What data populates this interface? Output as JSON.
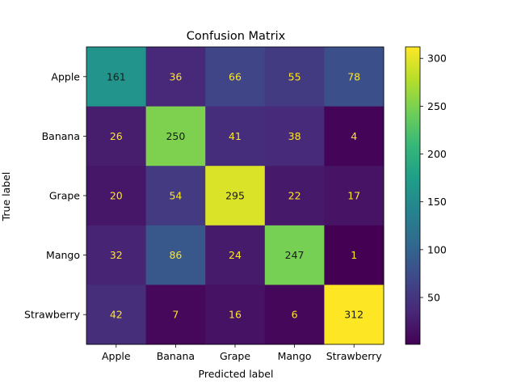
{
  "chart_data": {
    "type": "heatmap",
    "title": "Confusion Matrix",
    "xlabel": "Predicted label",
    "ylabel": "True label",
    "x_categories": [
      "Apple",
      "Banana",
      "Grape",
      "Mango",
      "Strawberry"
    ],
    "y_categories": [
      "Apple",
      "Banana",
      "Grape",
      "Mango",
      "Strawberry"
    ],
    "values": [
      [
        161,
        36,
        66,
        55,
        78
      ],
      [
        26,
        250,
        41,
        38,
        4
      ],
      [
        20,
        54,
        295,
        22,
        17
      ],
      [
        32,
        86,
        24,
        247,
        1
      ],
      [
        42,
        7,
        16,
        6,
        312
      ]
    ],
    "colormap": "viridis",
    "color_range": [
      1,
      312
    ],
    "colorbar_ticks": [
      50,
      100,
      150,
      200,
      250,
      300
    ],
    "grid": false
  },
  "colors": {
    "label_on_dark": "#fde725",
    "label_on_light": "#1a1a1a",
    "axis": "#000000"
  }
}
